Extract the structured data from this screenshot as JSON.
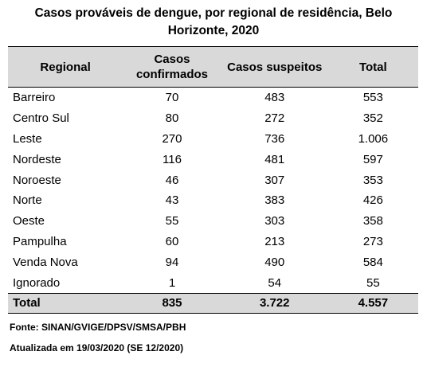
{
  "title": "Casos prováveis de dengue, por regional de residência, Belo Horizonte, 2020",
  "table": {
    "header": [
      "Regional",
      "Casos confirmados",
      "Casos suspeitos",
      "Total"
    ],
    "rows": [
      [
        "Barreiro",
        "70",
        "483",
        "553"
      ],
      [
        "Centro Sul",
        "80",
        "272",
        "352"
      ],
      [
        "Leste",
        "270",
        "736",
        "1.006"
      ],
      [
        "Nordeste",
        "116",
        "481",
        "597"
      ],
      [
        "Noroeste",
        "46",
        "307",
        "353"
      ],
      [
        "Norte",
        "43",
        "383",
        "426"
      ],
      [
        "Oeste",
        "55",
        "303",
        "358"
      ],
      [
        "Pampulha",
        "60",
        "213",
        "273"
      ],
      [
        "Venda Nova",
        "94",
        "490",
        "584"
      ],
      [
        "Ignorado",
        "1",
        "54",
        "55"
      ]
    ],
    "total": [
      "Total",
      "835",
      "3.722",
      "4.557"
    ]
  },
  "footnotes": [
    "Fonte: SINAN/GVIGE/DPSV/SMSA/PBH",
    "Atualizada em 19/03/2020 (SE 12/2020)"
  ]
}
